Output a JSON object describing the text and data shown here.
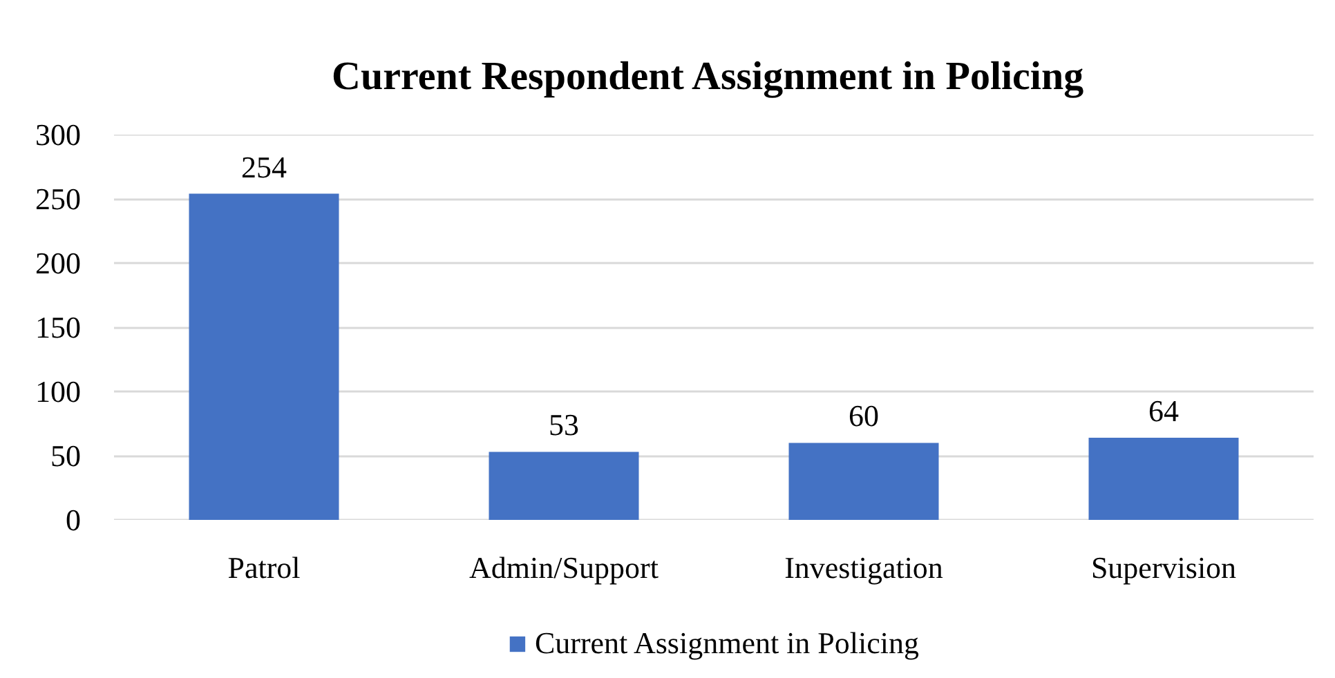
{
  "chart_data": {
    "type": "bar",
    "title": "Current  Respondent Assignment in Policing",
    "categories": [
      "Patrol",
      "Admin/Support",
      "Investigation",
      "Supervision"
    ],
    "series": [
      {
        "name": "Current Assignment in Policing",
        "color": "#4472c4",
        "values": [
          254,
          53,
          60,
          64
        ]
      }
    ],
    "ylim": [
      0,
      300
    ],
    "yticks": [
      0,
      50,
      100,
      150,
      200,
      250,
      300
    ],
    "grid": "y",
    "legend": "bottom",
    "data_labels": true
  }
}
